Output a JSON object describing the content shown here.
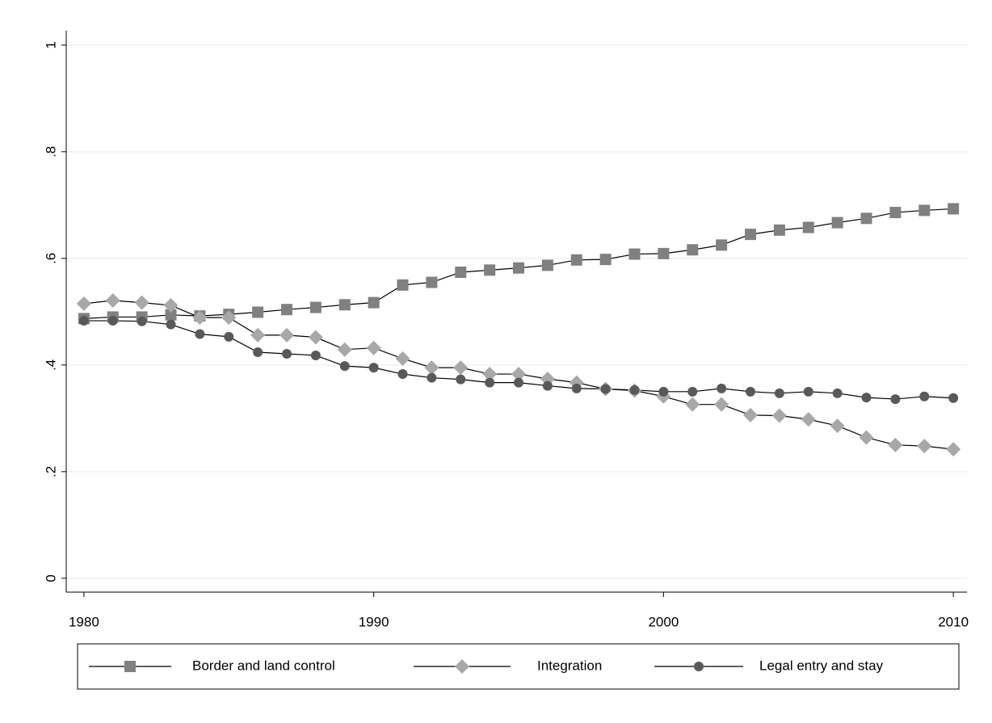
{
  "chart_data": {
    "type": "line",
    "x": [
      1980,
      1981,
      1982,
      1983,
      1984,
      1985,
      1986,
      1987,
      1988,
      1989,
      1990,
      1991,
      1992,
      1993,
      1994,
      1995,
      1996,
      1997,
      1998,
      1999,
      2000,
      2001,
      2002,
      2003,
      2004,
      2005,
      2006,
      2007,
      2008,
      2009,
      2010
    ],
    "series": [
      {
        "name": "Border and land control",
        "color": "#808080",
        "marker": "square",
        "values": [
          0.487,
          0.49,
          0.49,
          0.494,
          0.492,
          0.495,
          0.499,
          0.504,
          0.508,
          0.513,
          0.517,
          0.55,
          0.555,
          0.574,
          0.578,
          0.582,
          0.587,
          0.597,
          0.598,
          0.608,
          0.609,
          0.616,
          0.625,
          0.645,
          0.653,
          0.658,
          0.667,
          0.675,
          0.686,
          0.69,
          0.693
        ]
      },
      {
        "name": "Integration",
        "color": "#a8a8a8",
        "marker": "diamond",
        "values": [
          0.515,
          0.521,
          0.517,
          0.512,
          0.489,
          0.489,
          0.456,
          0.456,
          0.452,
          0.429,
          0.432,
          0.412,
          0.395,
          0.395,
          0.383,
          0.383,
          0.374,
          0.367,
          0.355,
          0.352,
          0.341,
          0.326,
          0.326,
          0.306,
          0.305,
          0.298,
          0.286,
          0.264,
          0.25,
          0.248,
          0.242
        ]
      },
      {
        "name": "Legal entry and stay",
        "color": "#595959",
        "marker": "circle",
        "values": [
          0.483,
          0.483,
          0.482,
          0.476,
          0.458,
          0.453,
          0.424,
          0.421,
          0.418,
          0.398,
          0.395,
          0.383,
          0.376,
          0.373,
          0.367,
          0.367,
          0.361,
          0.356,
          0.355,
          0.353,
          0.35,
          0.35,
          0.356,
          0.35,
          0.347,
          0.35,
          0.347,
          0.339,
          0.336,
          0.341,
          0.338
        ]
      }
    ],
    "xlim": [
      1979.39,
      2010.47
    ],
    "xticks": [
      1980,
      1990,
      2000,
      2010
    ],
    "ylim": [
      -0.026,
      1.027
    ],
    "yticks": [
      0,
      {
        "value": 0.2,
        "label": ".2"
      },
      {
        "value": 0.4,
        "label": ".4"
      },
      {
        "value": 0.6,
        "label": ".6"
      },
      {
        "value": 0.8,
        "label": ".8"
      },
      1
    ],
    "grid": true,
    "legend": "bottom"
  }
}
